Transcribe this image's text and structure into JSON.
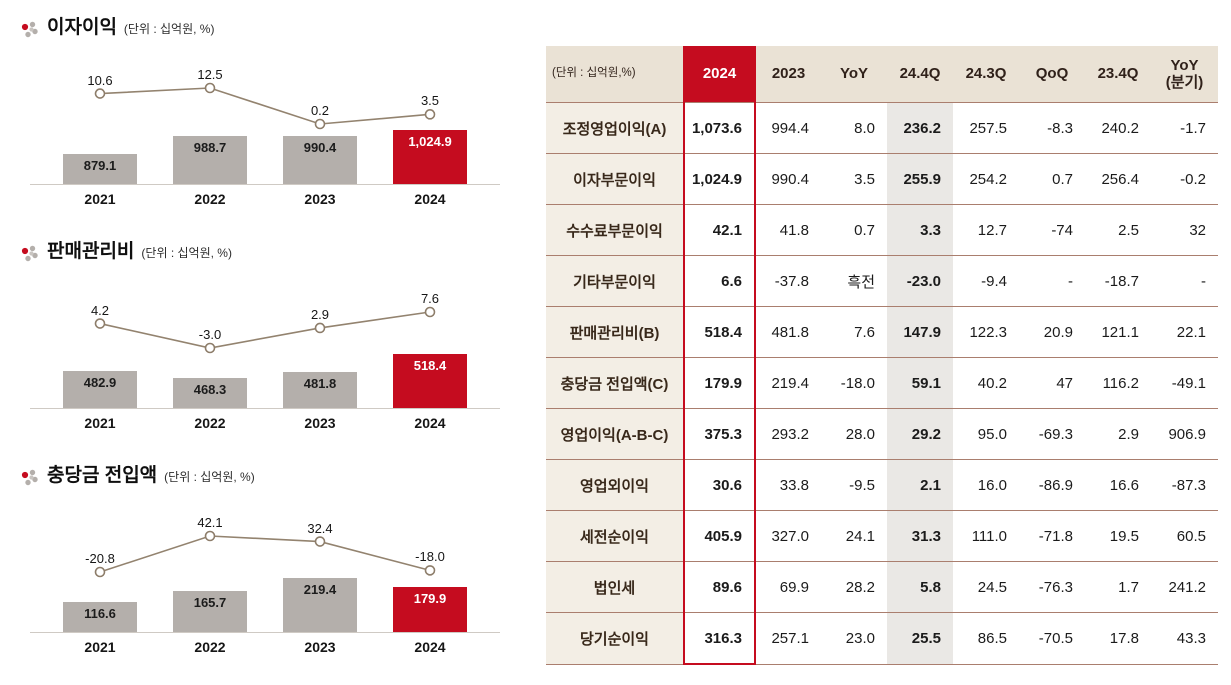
{
  "colors": {
    "accent_red": "#c50c1f",
    "bar_gray": "#b4afab",
    "growth_line": "#93836f",
    "table_row_line": "#aa7e6e",
    "header_beige": "#eae2d5",
    "label_beige": "#f3eee5",
    "quarter_gray": "#eae8e5"
  },
  "chart_data": [
    {
      "type": "bar",
      "title": "이자이익",
      "unit": "(단위 : 십억원, %)",
      "categories": [
        "2021",
        "2022",
        "2023",
        "2024"
      ],
      "series": [
        {
          "name": "이자이익",
          "type": "bar",
          "values": [
            879.1,
            988.7,
            990.4,
            1024.9
          ],
          "labels": [
            "879.1",
            "988.7",
            "990.4",
            "1,024.9"
          ]
        },
        {
          "name": "증감률",
          "type": "line",
          "values": [
            10.6,
            12.5,
            0.2,
            3.5
          ],
          "labels": [
            "10.6",
            "12.5",
            "0.2",
            "3.5"
          ]
        }
      ],
      "highlight_last_bar": true
    },
    {
      "type": "bar",
      "title": "판매관리비",
      "unit": "(단위 : 십억원, %)",
      "categories": [
        "2021",
        "2022",
        "2023",
        "2024"
      ],
      "series": [
        {
          "name": "판매관리비",
          "type": "bar",
          "values": [
            482.9,
            468.3,
            481.8,
            518.4
          ],
          "labels": [
            "482.9",
            "468.3",
            "481.8",
            "518.4"
          ]
        },
        {
          "name": "증감률",
          "type": "line",
          "values": [
            4.2,
            -3.0,
            2.9,
            7.6
          ],
          "labels": [
            "4.2",
            "-3.0",
            "2.9",
            "7.6"
          ]
        }
      ],
      "highlight_last_bar": true
    },
    {
      "type": "bar",
      "title": "충당금 전입액",
      "unit": "(단위 : 십억원, %)",
      "categories": [
        "2021",
        "2022",
        "2023",
        "2024"
      ],
      "series": [
        {
          "name": "충당금 전입액",
          "type": "bar",
          "values": [
            116.6,
            165.7,
            219.4,
            179.9
          ],
          "labels": [
            "116.6",
            "165.7",
            "219.4",
            "179.9"
          ]
        },
        {
          "name": "증감률",
          "type": "line",
          "values": [
            -20.8,
            42.1,
            32.4,
            -18.0
          ],
          "labels": [
            "-20.8",
            "42.1",
            "32.4",
            "-18.0"
          ]
        }
      ],
      "highlight_last_bar": true
    },
    {
      "type": "table",
      "unit": "(단위 : 십억원,%)",
      "columns": [
        "2024",
        "2023",
        "YoY",
        "24.4Q",
        "24.3Q",
        "QoQ",
        "23.4Q",
        "YoY\n(분기)"
      ],
      "highlight_column": "2024",
      "gray_column": "24.4Q",
      "rows": [
        {
          "label": "조정영업이익(A)",
          "values": [
            "1,073.6",
            "994.4",
            "8.0",
            "236.2",
            "257.5",
            "-8.3",
            "240.2",
            "-1.7"
          ]
        },
        {
          "label": "이자부문이익",
          "values": [
            "1,024.9",
            "990.4",
            "3.5",
            "255.9",
            "254.2",
            "0.7",
            "256.4",
            "-0.2"
          ]
        },
        {
          "label": "수수료부문이익",
          "values": [
            "42.1",
            "41.8",
            "0.7",
            "3.3",
            "12.7",
            "-74",
            "2.5",
            "32"
          ]
        },
        {
          "label": "기타부문이익",
          "values": [
            "6.6",
            "-37.8",
            "흑전",
            "-23.0",
            "-9.4",
            "-",
            "-18.7",
            "-"
          ]
        },
        {
          "label": "판매관리비(B)",
          "values": [
            "518.4",
            "481.8",
            "7.6",
            "147.9",
            "122.3",
            "20.9",
            "121.1",
            "22.1"
          ]
        },
        {
          "label": "충당금 전입액(C)",
          "values": [
            "179.9",
            "219.4",
            "-18.0",
            "59.1",
            "40.2",
            "47",
            "116.2",
            "-49.1"
          ]
        },
        {
          "label": "영업이익(A-B-C)",
          "values": [
            "375.3",
            "293.2",
            "28.0",
            "29.2",
            "95.0",
            "-69.3",
            "2.9",
            "906.9"
          ]
        },
        {
          "label": "영업외이익",
          "values": [
            "30.6",
            "33.8",
            "-9.5",
            "2.1",
            "16.0",
            "-86.9",
            "16.6",
            "-87.3"
          ]
        },
        {
          "label": "세전순이익",
          "values": [
            "405.9",
            "327.0",
            "24.1",
            "31.3",
            "111.0",
            "-71.8",
            "19.5",
            "60.5"
          ]
        },
        {
          "label": "법인세",
          "values": [
            "89.6",
            "69.9",
            "28.2",
            "5.8",
            "24.5",
            "-76.3",
            "1.7",
            "241.2"
          ]
        },
        {
          "label": "당기순이익",
          "values": [
            "316.3",
            "257.1",
            "23.0",
            "25.5",
            "86.5",
            "-70.5",
            "17.8",
            "43.3"
          ]
        }
      ]
    }
  ]
}
